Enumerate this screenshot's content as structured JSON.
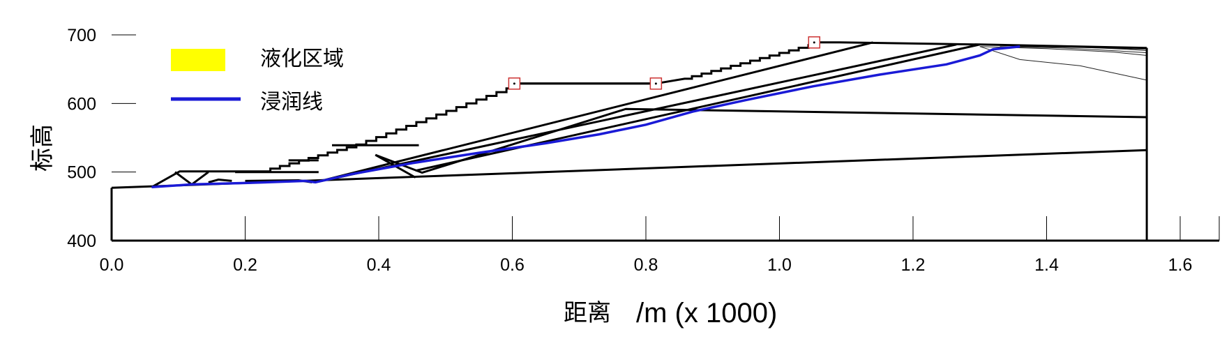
{
  "chart_data": {
    "type": "line",
    "xlabel": "距离",
    "xlabel_unit": "/m (x  1000)",
    "ylabel": "标高",
    "xlim": [
      0,
      1.6
    ],
    "ylim": [
      400,
      700
    ],
    "x_ticks": [
      "0.0",
      "0.2",
      "0.4",
      "0.6",
      "0.8",
      "1.0",
      "1.2",
      "1.4",
      "1.6"
    ],
    "y_ticks": [
      "400",
      "500",
      "600",
      "700"
    ],
    "legend": [
      {
        "label": "液化区域",
        "color": "#ffff00",
        "kind": "patch"
      },
      {
        "label": "浸润线",
        "color": "#1a1ad6",
        "kind": "line"
      }
    ],
    "legend_position": "top-left",
    "colors": {
      "liquefaction": "#ffff00",
      "phreatic": "#1a1ad6",
      "marker": "#cc3333"
    },
    "series": [
      {
        "name": "浸润线",
        "x": [
          0.06,
          0.12,
          0.2,
          0.29,
          0.305,
          0.36,
          0.45,
          0.55,
          0.65,
          0.73,
          0.8,
          0.87,
          0.95,
          1.05,
          1.15,
          1.25,
          1.3,
          1.32,
          1.36
        ],
        "y": [
          478,
          482,
          484,
          487,
          485,
          497,
          513,
          528,
          542,
          555,
          569,
          588,
          605,
          625,
          642,
          657,
          670,
          679,
          683
        ]
      }
    ],
    "markers": [
      {
        "x": 0.603,
        "y": 629
      },
      {
        "x": 0.815,
        "y": 629
      },
      {
        "x": 1.052,
        "y": 689
      }
    ],
    "dam_outline": {
      "x": [
        0.06,
        0.102,
        0.227,
        0.37,
        0.595,
        0.6,
        0.815,
        0.858,
        1.047,
        1.051,
        1.09,
        1.3,
        1.55
      ],
      "y": [
        478,
        501,
        501,
        540,
        622,
        629,
        629,
        636,
        685,
        689,
        689,
        686,
        681
      ]
    },
    "internal_lines": [
      {
        "x": [
          0.0,
          1.55
        ],
        "y": [
          477,
          532
        ]
      },
      {
        "x": [
          0.305,
          1.14
        ],
        "y": [
          485,
          689
        ]
      },
      {
        "x": [
          0.305,
          1.265
        ],
        "y": [
          485,
          686
        ]
      },
      {
        "x": [
          0.395,
          0.465,
          0.77,
          1.55
        ],
        "y": [
          525,
          499,
          592,
          580
        ]
      },
      {
        "x": [
          0.395,
          0.455
        ],
        "y": [
          525,
          492
        ]
      },
      {
        "x": [
          0.455,
          1.3
        ],
        "y": [
          502,
          686
        ]
      },
      {
        "x": [
          0.095,
          0.12,
          0.145
        ],
        "y": [
          500,
          482,
          500
        ]
      },
      {
        "x": [
          0.145,
          0.16,
          0.18
        ],
        "y": [
          485,
          489,
          487
        ]
      },
      {
        "x": [
          0.2,
          0.28,
          0.3
        ],
        "y": [
          487,
          488,
          485
        ]
      },
      {
        "x": [
          0.185,
          0.31
        ],
        "y": [
          500,
          500
        ]
      },
      {
        "x": [
          0.265,
          0.31
        ],
        "y": [
          517,
          517
        ]
      },
      {
        "x": [
          0.33,
          0.46
        ],
        "y": [
          539,
          539
        ]
      },
      {
        "x": [
          0.6,
          0.82
        ],
        "y": [
          629,
          629
        ]
      }
    ],
    "thin_contours": [
      {
        "x": [
          1.3,
          1.36,
          1.45,
          1.55
        ],
        "y": [
          683,
          664,
          655,
          634
        ]
      },
      {
        "x": [
          1.3,
          1.4,
          1.5,
          1.55
        ],
        "y": [
          683,
          680,
          675,
          670
        ]
      },
      {
        "x": [
          1.33,
          1.42,
          1.5,
          1.55
        ],
        "y": [
          683,
          681,
          677,
          674
        ]
      },
      {
        "x": [
          1.36,
          1.45,
          1.52,
          1.55
        ],
        "y": [
          683,
          682,
          679,
          677
        ]
      },
      {
        "x": [
          1.38,
          1.48,
          1.55
        ],
        "y": [
          683,
          681,
          679
        ]
      },
      {
        "x": [
          1.4,
          1.5,
          1.55
        ],
        "y": [
          683,
          682,
          680
        ]
      },
      {
        "x": [
          1.42,
          1.52,
          1.55
        ],
        "y": [
          683,
          682,
          681
        ]
      }
    ]
  }
}
